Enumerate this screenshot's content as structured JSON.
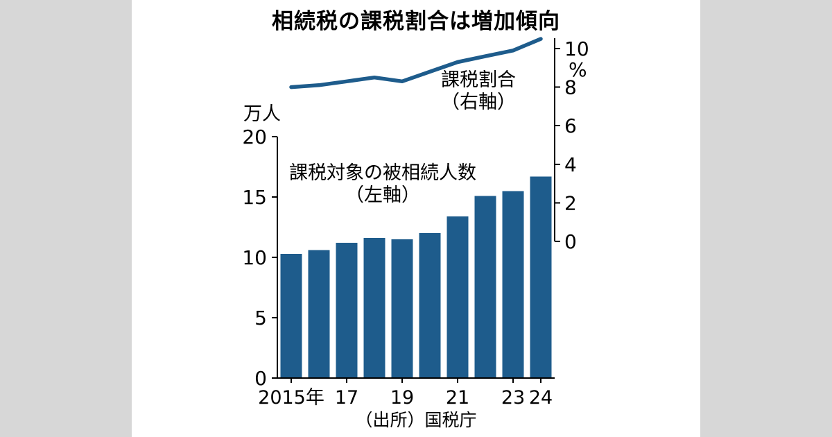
{
  "chart_data": {
    "type": "combo",
    "title": "相続税の課税割合は増加傾向",
    "source": "（出所）国税庁",
    "categories": [
      "2015",
      "2016",
      "2017",
      "2018",
      "2019",
      "2020",
      "2021",
      "2022",
      "2023",
      "2024"
    ],
    "x_axis": {
      "tick_indices": [
        0,
        2,
        4,
        6,
        8,
        9
      ],
      "tick_labels": [
        "2015年",
        "17",
        "19",
        "21",
        "23",
        "24"
      ]
    },
    "left_axis": {
      "unit_label": "万人",
      "min": 0,
      "max": 20,
      "ticks": [
        0,
        5,
        10,
        15,
        20
      ]
    },
    "right_axis": {
      "unit_label": "%",
      "min": 0,
      "max": 10,
      "ticks": [
        0,
        2,
        4,
        6,
        8,
        10
      ]
    },
    "series": [
      {
        "name": "課税対象の被相続人数（左軸）",
        "label_lines": [
          "課税対象の被相続人数",
          "（左軸）"
        ],
        "type": "bar",
        "axis": "left",
        "unit": "万人",
        "values": [
          10.3,
          10.6,
          11.2,
          11.6,
          11.5,
          12.0,
          13.4,
          15.1,
          15.5,
          16.7
        ]
      },
      {
        "name": "課税割合（右軸）",
        "label_lines": [
          "課税割合",
          "（右軸）"
        ],
        "type": "line",
        "axis": "right",
        "unit": "%",
        "values": [
          8.0,
          8.1,
          8.3,
          8.5,
          8.3,
          8.8,
          9.3,
          9.6,
          9.9,
          10.5
        ]
      }
    ],
    "grid": false,
    "legend_position": "inline-annotations",
    "colors": {
      "series_blue": "#1e5c8c",
      "axis_black": "#000000",
      "panel_white": "#ffffff",
      "background_gray": "#d7d7d7"
    }
  }
}
